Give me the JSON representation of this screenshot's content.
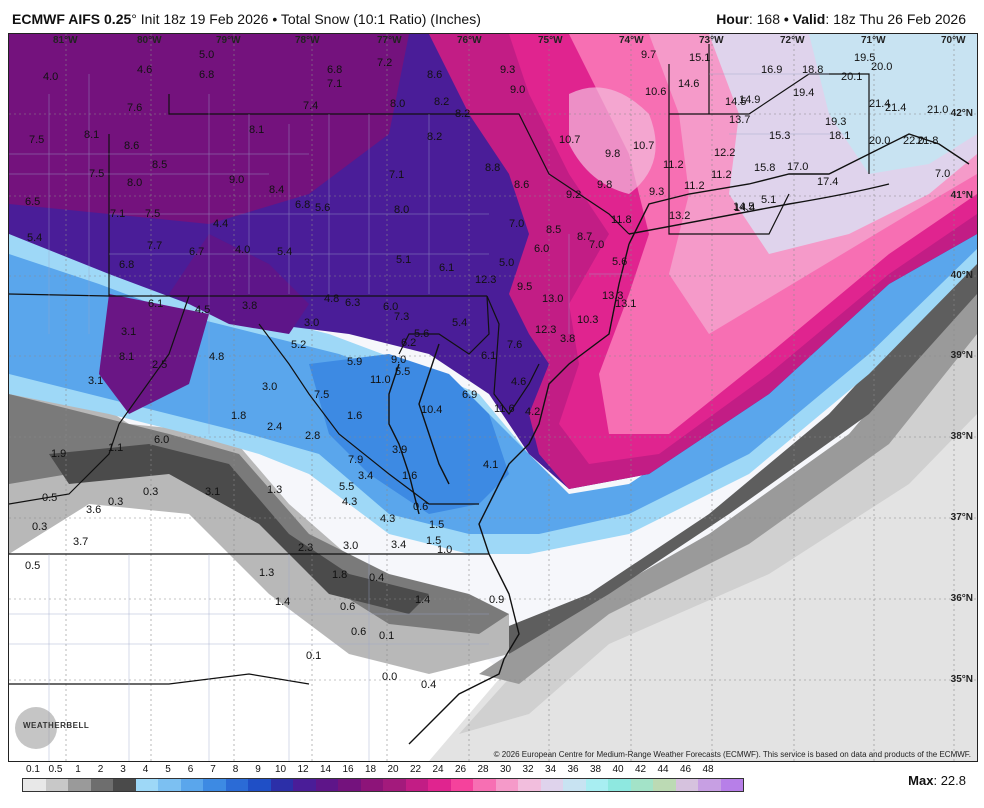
{
  "header": {
    "model": "ECMWF AIFS 0.25",
    "degree": "°",
    "init": " Init 18z 19 Feb 2026",
    "bullet": " • ",
    "product": "Total Snow (10:1 Ratio) (Inches)",
    "hour_label": "Hour",
    "hour_value": ": 168",
    "valid_label": " • Valid",
    "valid_value": ": 18z Thu 26 Feb 2026"
  },
  "longitudes": [
    "81°W",
    "80°W",
    "79°W",
    "78°W",
    "77°W",
    "76°W",
    "75°W",
    "74°W",
    "73°W",
    "72°W",
    "71°W",
    "70°W"
  ],
  "latitudes": [
    "42°N",
    "41°N",
    "40°N",
    "39°N",
    "38°N",
    "37°N",
    "36°N",
    "35°N"
  ],
  "snow_values": [
    "4.0",
    "4.6",
    "5.0",
    "6.8",
    "6.8",
    "7.1",
    "7.2",
    "8.6",
    "9.3",
    "9.7",
    "15.1",
    "16.9",
    "18.8",
    "19.5",
    "20.0",
    "20.1",
    "7.6",
    "7.4",
    "8.0",
    "8.2",
    "8.2",
    "9.0",
    "10.6",
    "14.6",
    "14.9",
    "19.4",
    "21.4",
    "21.4",
    "21.0",
    "7.5",
    "8.1",
    "8.6",
    "8.1",
    "8.2",
    "10.7",
    "9.8",
    "10.7",
    "14.5",
    "13.7",
    "15.3",
    "19.3",
    "18.1",
    "20.0",
    "22.0",
    "21.8",
    "7.5",
    "8.5",
    "8.0",
    "9.0",
    "8.4",
    "7.1",
    "8.8",
    "8.6",
    "11.2",
    "12.2",
    "11.2",
    "11.2",
    "14.5",
    "15.8",
    "17.0",
    "17.4",
    "7.0",
    "6.5",
    "7.1",
    "7.5",
    "6.8",
    "5.6",
    "8.0",
    "9.2",
    "9.8",
    "9.3",
    "11.8",
    "13.2",
    "14.4",
    "5.1",
    "5.4",
    "7.7",
    "4.4",
    "6.8",
    "6.7",
    "4.0",
    "5.4",
    "7.0",
    "8.5",
    "8.7",
    "7.0",
    "6.0",
    "5.0",
    "5.1",
    "6.1",
    "12.3",
    "5.6",
    "6.1",
    "4.5",
    "3.8",
    "4.8",
    "6.3",
    "6.0",
    "7.3",
    "9.5",
    "13.0",
    "13.3",
    "13.1",
    "10.3",
    "12.3",
    "3.8",
    "3.1",
    "3.0",
    "5.2",
    "5.4",
    "5.6",
    "6.2",
    "8.1",
    "2.5",
    "4.8",
    "5.9",
    "9.0",
    "7.6",
    "6.1",
    "5.5",
    "11.0",
    "4.6",
    "3.1",
    "3.0",
    "7.5",
    "6.9",
    "10.4",
    "11.6",
    "4.2",
    "1.6",
    "1.8",
    "2.4",
    "2.8",
    "1.9",
    "1.1",
    "6.0",
    "3.9",
    "7.9",
    "4.1",
    "3.4",
    "5.5",
    "1.6",
    "1.3",
    "0.5",
    "0.3",
    "0.3",
    "3.1",
    "4.3",
    "0.6",
    "3.6",
    "4.3",
    "1.5",
    "0.3",
    "3.7",
    "1.5",
    "2.3",
    "3.0",
    "3.4",
    "1.0",
    "0.5",
    "1.3",
    "1.8",
    "0.4",
    "1.4",
    "1.4",
    "0.9",
    "0.6",
    "0.6",
    "0.1",
    "0.1",
    "0.0",
    "0.4"
  ],
  "copyright": "© 2026 European Centre for Medium-Range Weather Forecasts (ECMWF). This service is based on data and products of the ECMWF.",
  "logo_text": "WEATHERBELL",
  "scale": {
    "labels": [
      "0.1",
      "0.5",
      "1",
      "2",
      "3",
      "4",
      "5",
      "6",
      "7",
      "8",
      "9",
      "10",
      "12",
      "14",
      "16",
      "18",
      "20",
      "22",
      "24",
      "26",
      "28",
      "30",
      "32",
      "34",
      "36",
      "38",
      "40",
      "42",
      "44",
      "46",
      "48"
    ],
    "colors": [
      "#e8e8e8",
      "#c8c8c8",
      "#9a9a9a",
      "#6e6e6e",
      "#4a4a4a",
      "#9ed8f7",
      "#7cc0f2",
      "#5aa6ec",
      "#3d8ae3",
      "#2b6bd6",
      "#1f4fc6",
      "#2c2fa8",
      "#4a1d98",
      "#5e1589",
      "#74127d",
      "#8d1479",
      "#a31a7c",
      "#c21d85",
      "#e0248f",
      "#f5429c",
      "#f76fb3",
      "#f59ac9",
      "#f2bedd",
      "#dfd3ec",
      "#c8e3f2",
      "#a8eef2",
      "#8ee8e0",
      "#a3e3c8",
      "#bcdab4",
      "#d6c2de",
      "#c79fe3",
      "#b77fe8"
    ],
    "max_label": "Max",
    "max_value": ": 22.8"
  }
}
